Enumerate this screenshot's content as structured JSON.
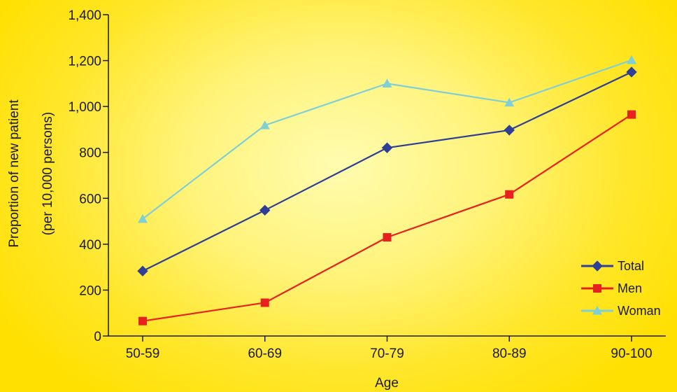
{
  "chart_data": {
    "type": "line",
    "categories": [
      "50-59",
      "60-69",
      "70-79",
      "80-89",
      "90-100"
    ],
    "xlabel": "Age",
    "ylabel_line1": "Proportion of new patient",
    "ylabel_line2": "(per 10,000 persons)",
    "ylim": [
      0,
      1400
    ],
    "yticks": [
      0,
      200,
      400,
      600,
      800,
      1000,
      1200,
      1400
    ],
    "ytick_labels": [
      "0",
      "200",
      "400",
      "600",
      "800",
      "1,000",
      "1,200",
      "1,400"
    ],
    "grid": false,
    "legend_position": "bottom-right",
    "series": [
      {
        "name": "Total",
        "values": [
          283,
          548,
          820,
          897,
          1150
        ],
        "color": "#2e3f95",
        "marker": "diamond"
      },
      {
        "name": "Men",
        "values": [
          65,
          145,
          430,
          617,
          965
        ],
        "color": "#e8201e",
        "marker": "square"
      },
      {
        "name": "Woman",
        "values": [
          510,
          918,
          1100,
          1017,
          1202
        ],
        "color": "#7fcfd6",
        "marker": "triangle"
      }
    ]
  }
}
